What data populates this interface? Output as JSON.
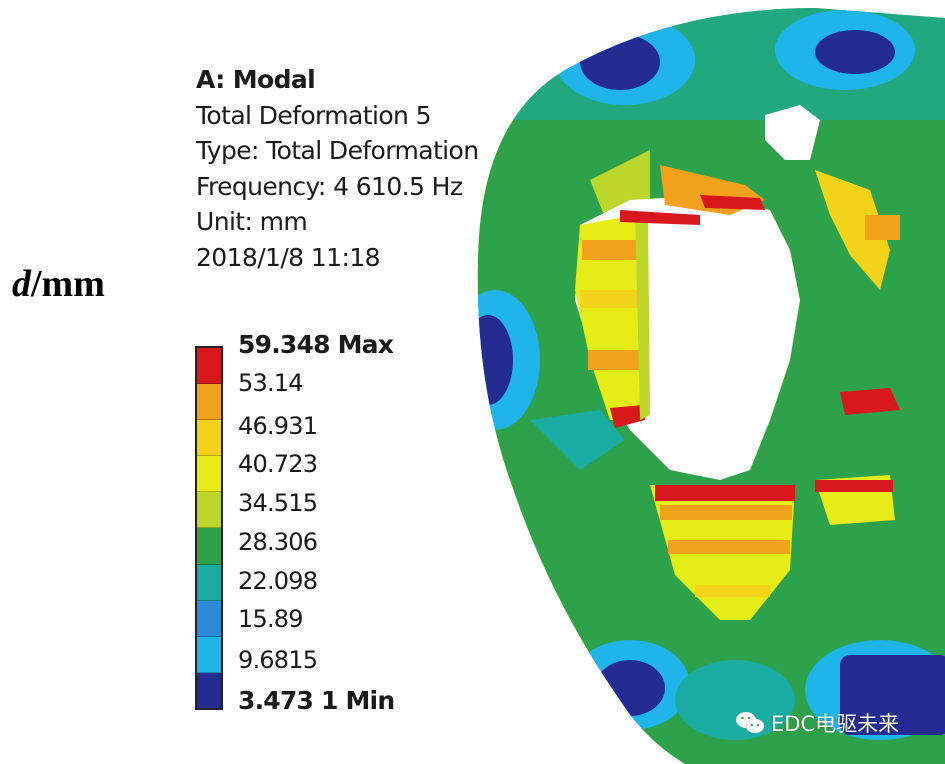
{
  "info": {
    "title": "A: Modal",
    "name": "Total Deformation 5",
    "type": "Type: Total Deformation",
    "frequency": "Frequency: 4 610.5 Hz",
    "unit": "Unit: mm",
    "date": "2018/1/8 11:18"
  },
  "axis_label": {
    "symbol": "d",
    "unit": "/mm"
  },
  "legend": {
    "max_label": "59.348 Max",
    "min_label": "3.473 1 Min",
    "values": [
      "53.14",
      "46.931",
      "40.723",
      "34.515",
      "28.306",
      "22.098",
      "15.89",
      "9.6815"
    ],
    "colors": [
      "#d8181c",
      "#f2a11a",
      "#f3d21a",
      "#e8ec16",
      "#bcd72a",
      "#2ea24a",
      "#1aaba2",
      "#2a8ad8",
      "#1fb4ea",
      "#242c92"
    ]
  },
  "plot_colors": {
    "dark_blue": "#242c92",
    "blue": "#2a8ad8",
    "teal": "#1aaba2",
    "green": "#2ea24a",
    "yellow_green": "#bcd72a",
    "yellow": "#e8ec16",
    "orange": "#f2a11a",
    "red": "#d8181c"
  },
  "watermark": {
    "text": "EDC电驱未来",
    "icon": "wechat-icon"
  }
}
